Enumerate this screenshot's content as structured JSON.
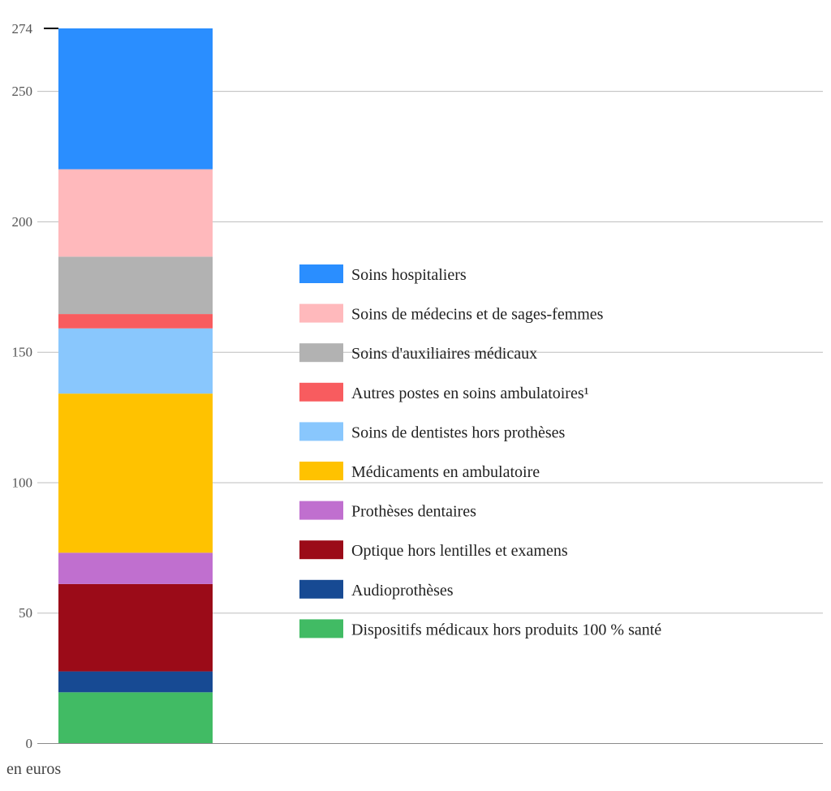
{
  "chart_data": {
    "type": "bar",
    "stacked": true,
    "categories": [
      ""
    ],
    "unit_label": "en euros",
    "ylim": [
      0,
      274
    ],
    "y_ticks": [
      0,
      50,
      100,
      150,
      200,
      250,
      274
    ],
    "grid": true,
    "legend_position": "right",
    "series": [
      {
        "name": "Dispositifs médicaux hors produits 100 % santé",
        "values": [
          19.5
        ],
        "color": "#41BB64"
      },
      {
        "name": "Audioprothèses",
        "values": [
          8
        ],
        "color": "#174A93"
      },
      {
        "name": "Optique hors lentilles et examens",
        "values": [
          33.5
        ],
        "color": "#9B0B18"
      },
      {
        "name": "Prothèses dentaires",
        "values": [
          12
        ],
        "color": "#C06FCF"
      },
      {
        "name": "Médicaments en ambulatoire",
        "values": [
          61
        ],
        "color": "#FFC200"
      },
      {
        "name": "Soins de dentistes hors prothèses",
        "values": [
          25
        ],
        "color": "#89C7FD"
      },
      {
        "name": "Autres postes en soins ambulatoires¹",
        "values": [
          5.5
        ],
        "color": "#F85C5F"
      },
      {
        "name": "Soins d'auxiliaires médicaux",
        "values": [
          22
        ],
        "color": "#B2B2B2"
      },
      {
        "name": "Soins de médecins et de sages-femmes",
        "values": [
          33.5
        ],
        "color": "#FFB9BC"
      },
      {
        "name": "Soins hospitaliers",
        "values": [
          54
        ],
        "color": "#2A8EFF"
      }
    ]
  }
}
